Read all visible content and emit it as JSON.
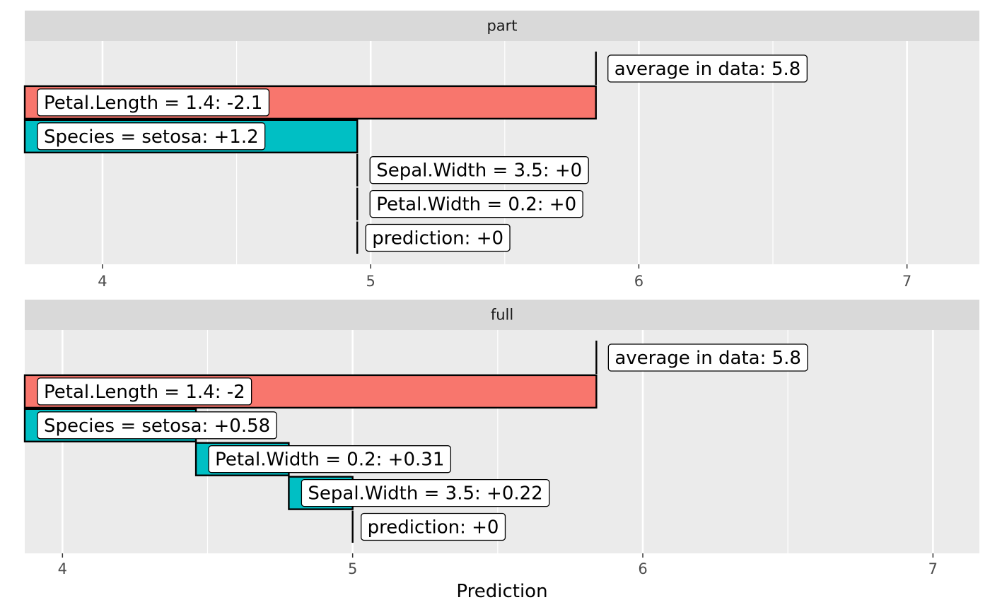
{
  "chart_data": {
    "type": "bar",
    "xlabel": "Prediction",
    "panels": [
      {
        "strip": "part",
        "xlim": [
          3.71,
          7.27
        ],
        "ticks": [
          4,
          5,
          6,
          7
        ],
        "tick_labels": [
          "4",
          "5",
          "6",
          "7"
        ],
        "rows": [
          {
            "label": "average in data: 5.8",
            "kind": "intercept",
            "value": 5.84
          },
          {
            "label": "Petal.Length = 1.4: -2.1",
            "kind": "negative",
            "start": 5.84,
            "end": 3.71
          },
          {
            "label": "Species = setosa: +1.2",
            "kind": "positive",
            "start": 3.71,
            "end": 4.95
          },
          {
            "label": "Sepal.Width = 3.5: +0",
            "kind": "zero",
            "value": 4.95
          },
          {
            "label": "Petal.Width = 0.2: +0",
            "kind": "zero",
            "value": 4.95
          },
          {
            "label": "prediction: +0",
            "kind": "prediction",
            "value": 4.95
          }
        ]
      },
      {
        "strip": "full",
        "xlim": [
          3.87,
          7.16
        ],
        "ticks": [
          4,
          5,
          6,
          7
        ],
        "tick_labels": [
          "4",
          "5",
          "6",
          "7"
        ],
        "rows": [
          {
            "label": "average in data: 5.8",
            "kind": "intercept",
            "value": 5.84
          },
          {
            "label": "Petal.Length = 1.4: -2",
            "kind": "negative",
            "start": 5.84,
            "end": 3.87
          },
          {
            "label": "Species = setosa: +0.58",
            "kind": "positive",
            "start": 3.87,
            "end": 4.46
          },
          {
            "label": "Petal.Width = 0.2: +0.31",
            "kind": "positive",
            "start": 4.46,
            "end": 4.78
          },
          {
            "label": "Sepal.Width = 3.5: +0.22",
            "kind": "positive",
            "start": 4.78,
            "end": 5.0
          },
          {
            "label": "prediction: +0",
            "kind": "prediction",
            "value": 5.0
          }
        ]
      }
    ],
    "colors": {
      "negative": "#F8766D",
      "positive": "#00BFC4",
      "panel_bg": "#EBEBEB",
      "strip_bg": "#D9D9D9",
      "grid": "#FFFFFF"
    }
  }
}
